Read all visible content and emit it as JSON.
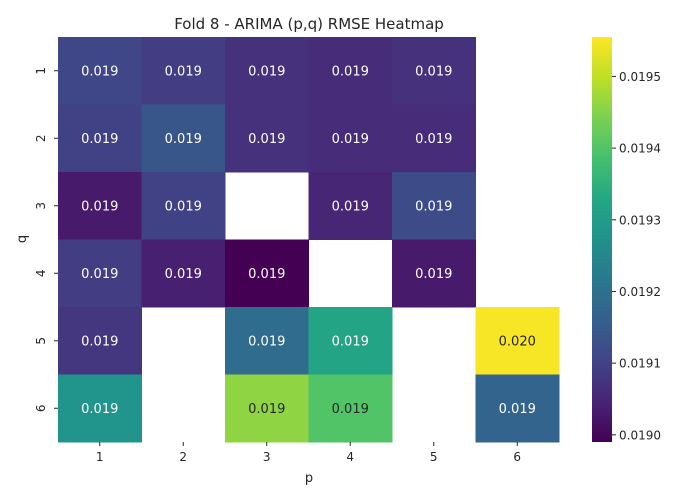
{
  "chart_data": {
    "type": "heatmap",
    "title": "Fold 8 - ARIMA (p,q) RMSE Heatmap",
    "xlabel": "p",
    "ylabel": "q",
    "x_categories": [
      "1",
      "2",
      "3",
      "4",
      "5",
      "6"
    ],
    "y_categories": [
      "1",
      "2",
      "3",
      "4",
      "5",
      "6"
    ],
    "values": [
      [
        0.01911,
        0.01909,
        0.01907,
        0.01906,
        0.01907,
        null
      ],
      [
        0.0191,
        0.01914,
        0.01907,
        0.01906,
        0.01906,
        null
      ],
      [
        0.01903,
        0.0191,
        null,
        0.01905,
        0.01912,
        null
      ],
      [
        0.01909,
        0.01904,
        0.01899,
        null,
        0.01903,
        null
      ],
      [
        0.01908,
        null,
        0.01919,
        0.01932,
        null,
        0.01955
      ],
      [
        0.01928,
        null,
        0.01946,
        0.0194,
        null,
        0.01917
      ]
    ],
    "annotations": [
      [
        "0.019",
        "0.019",
        "0.019",
        "0.019",
        "0.019",
        ""
      ],
      [
        "0.019",
        "0.019",
        "0.019",
        "0.019",
        "0.019",
        ""
      ],
      [
        "0.019",
        "0.019",
        "",
        "0.019",
        "0.019",
        ""
      ],
      [
        "0.019",
        "0.019",
        "0.019",
        "",
        "0.019",
        ""
      ],
      [
        "0.019",
        "",
        "0.019",
        "0.019",
        "",
        "0.020"
      ],
      [
        "0.019",
        "",
        "0.019",
        "0.019",
        "",
        "0.019"
      ]
    ],
    "colormap": "viridis",
    "vmin": 0.01899,
    "vmax": 0.019555,
    "colorbar_ticks": [
      "0.0190",
      "0.0191",
      "0.0192",
      "0.0193",
      "0.0194",
      "0.0195"
    ],
    "colorbar_tick_values": [
      0.019,
      0.0191,
      0.0192,
      0.0193,
      0.0194,
      0.0195
    ]
  }
}
